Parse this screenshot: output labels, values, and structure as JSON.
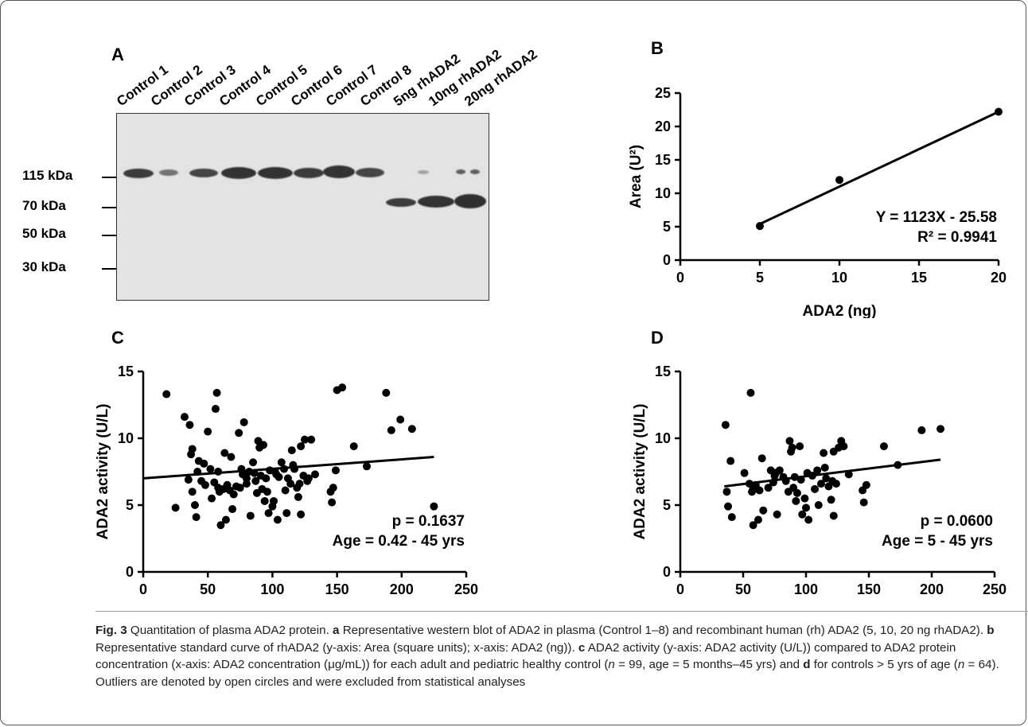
{
  "panels": {
    "a": "A",
    "b": "B",
    "c": "C",
    "d": "D"
  },
  "blot": {
    "lanes": [
      "Control 1",
      "Control 2",
      "Control 3",
      "Control 4",
      "Control 5",
      "Control 6",
      "Control 7",
      "Control 8",
      "5ng rhADA2",
      "10ng rhADA2",
      "20ng rhADA2"
    ],
    "markers": [
      "115 kDa",
      "70 kDa",
      "50 kDa",
      "30 kDa"
    ]
  },
  "chart_data": [
    {
      "panel": "B",
      "type": "scatter",
      "xlabel": "ADA2 (ng)",
      "ylabel": "Area (U²)",
      "xlim": [
        0,
        20
      ],
      "ylim": [
        0,
        25
      ],
      "xticks": [
        0,
        5,
        10,
        15,
        20
      ],
      "yticks": [
        0,
        5,
        10,
        15,
        20,
        25
      ],
      "points": [
        [
          5,
          5.1
        ],
        [
          10,
          12.0
        ],
        [
          20,
          22.2
        ]
      ],
      "fit": {
        "x": [
          5,
          20
        ],
        "y": [
          5.4,
          22.2
        ]
      },
      "annotations": [
        "Y = 1123X - 25.58",
        "R² = 0.9941"
      ]
    },
    {
      "panel": "C",
      "type": "scatter",
      "xlabel": "ADA2 concentration (μg/mL)",
      "ylabel": "ADA2 activity (U/L)",
      "xlim": [
        0,
        250
      ],
      "ylim": [
        0,
        15
      ],
      "xticks": [
        0,
        50,
        100,
        150,
        200,
        250
      ],
      "yticks": [
        0,
        5,
        10,
        15
      ],
      "points": [
        [
          18,
          13.3
        ],
        [
          25,
          4.8
        ],
        [
          32,
          11.6
        ],
        [
          35,
          6.9
        ],
        [
          36,
          11.0
        ],
        [
          37,
          8.8
        ],
        [
          38,
          9.2
        ],
        [
          38,
          6.0
        ],
        [
          40,
          5.0
        ],
        [
          41,
          4.1
        ],
        [
          42,
          7.5
        ],
        [
          43,
          8.3
        ],
        [
          45,
          6.8
        ],
        [
          47,
          8.1
        ],
        [
          48,
          6.5
        ],
        [
          50,
          10.5
        ],
        [
          52,
          7.7
        ],
        [
          53,
          5.5
        ],
        [
          55,
          6.7
        ],
        [
          56,
          12.2
        ],
        [
          57,
          13.4
        ],
        [
          58,
          7.5
        ],
        [
          58,
          6.3
        ],
        [
          59,
          6.0
        ],
        [
          60,
          3.5
        ],
        [
          62,
          6.2
        ],
        [
          63,
          8.9
        ],
        [
          64,
          3.9
        ],
        [
          65,
          6.5
        ],
        [
          67,
          6.1
        ],
        [
          68,
          8.6
        ],
        [
          69,
          4.7
        ],
        [
          70,
          5.8
        ],
        [
          72,
          6.4
        ],
        [
          74,
          10.4
        ],
        [
          75,
          6.3
        ],
        [
          76,
          7.7
        ],
        [
          77,
          7.3
        ],
        [
          78,
          11.2
        ],
        [
          80,
          7.0
        ],
        [
          80,
          6.6
        ],
        [
          82,
          7.5
        ],
        [
          83,
          4.2
        ],
        [
          85,
          8.2
        ],
        [
          86,
          7.4
        ],
        [
          87,
          6.8
        ],
        [
          88,
          5.9
        ],
        [
          89,
          9.8
        ],
        [
          90,
          9.3
        ],
        [
          91,
          7.2
        ],
        [
          92,
          6.2
        ],
        [
          93,
          9.5
        ],
        [
          94,
          5.3
        ],
        [
          95,
          7.0
        ],
        [
          96,
          6.0
        ],
        [
          97,
          4.4
        ],
        [
          98,
          7.6
        ],
        [
          100,
          4.9
        ],
        [
          101,
          5.3
        ],
        [
          102,
          7.5
        ],
        [
          103,
          7.3
        ],
        [
          104,
          3.9
        ],
        [
          105,
          7.1
        ],
        [
          107,
          8.2
        ],
        [
          109,
          7.7
        ],
        [
          110,
          6.1
        ],
        [
          111,
          4.4
        ],
        [
          112,
          7.0
        ],
        [
          114,
          6.6
        ],
        [
          115,
          9.1
        ],
        [
          116,
          8.0
        ],
        [
          117,
          7.7
        ],
        [
          119,
          6.3
        ],
        [
          120,
          5.6
        ],
        [
          121,
          6.6
        ],
        [
          122,
          4.3
        ],
        [
          122,
          9.4
        ],
        [
          124,
          7.2
        ],
        [
          125,
          9.9
        ],
        [
          127,
          6.8
        ],
        [
          128,
          7.0
        ],
        [
          130,
          9.9
        ],
        [
          133,
          7.3
        ],
        [
          145,
          6.0
        ],
        [
          146,
          5.2
        ],
        [
          147,
          6.3
        ],
        [
          149,
          7.6
        ],
        [
          150,
          13.6
        ],
        [
          154,
          13.8
        ],
        [
          163,
          9.4
        ],
        [
          173,
          7.9
        ],
        [
          188,
          13.4
        ],
        [
          192,
          10.6
        ],
        [
          199,
          11.4
        ],
        [
          208,
          10.7
        ],
        [
          225,
          4.9
        ]
      ],
      "fit": {
        "x": [
          0,
          225
        ],
        "y": [
          7.0,
          8.6
        ]
      },
      "annotations": [
        "p = 0.1637",
        "Age = 0.42 - 45 yrs"
      ]
    },
    {
      "panel": "D",
      "type": "scatter",
      "xlabel": "ADA2 concentration (μg/mL)",
      "ylabel": "ADA2 activity (U/L)",
      "xlim": [
        0,
        250
      ],
      "ylim": [
        0,
        15
      ],
      "xticks": [
        0,
        50,
        100,
        150,
        200,
        250
      ],
      "yticks": [
        0,
        5,
        10,
        15
      ],
      "points": [
        [
          36,
          11.0
        ],
        [
          37,
          6.0
        ],
        [
          38,
          4.9
        ],
        [
          40,
          8.3
        ],
        [
          41,
          4.1
        ],
        [
          51,
          7.4
        ],
        [
          55,
          6.6
        ],
        [
          56,
          13.4
        ],
        [
          57,
          6.0
        ],
        [
          58,
          6.2
        ],
        [
          58,
          3.5
        ],
        [
          60,
          6.5
        ],
        [
          62,
          3.9
        ],
        [
          63,
          6.1
        ],
        [
          65,
          8.5
        ],
        [
          66,
          4.6
        ],
        [
          70,
          6.3
        ],
        [
          72,
          7.6
        ],
        [
          74,
          6.7
        ],
        [
          75,
          7.2
        ],
        [
          76,
          7.4
        ],
        [
          77,
          4.3
        ],
        [
          79,
          7.6
        ],
        [
          82,
          7.1
        ],
        [
          84,
          6.8
        ],
        [
          86,
          6.0
        ],
        [
          87,
          9.8
        ],
        [
          88,
          9.0
        ],
        [
          89,
          9.3
        ],
        [
          90,
          6.3
        ],
        [
          91,
          7.1
        ],
        [
          92,
          5.3
        ],
        [
          93,
          5.9
        ],
        [
          95,
          9.4
        ],
        [
          96,
          6.9
        ],
        [
          97,
          4.3
        ],
        [
          99,
          5.5
        ],
        [
          100,
          4.8
        ],
        [
          101,
          7.4
        ],
        [
          102,
          3.9
        ],
        [
          105,
          7.2
        ],
        [
          107,
          6.2
        ],
        [
          109,
          7.6
        ],
        [
          110,
          5.0
        ],
        [
          112,
          6.6
        ],
        [
          114,
          8.9
        ],
        [
          115,
          7.8
        ],
        [
          116,
          7.0
        ],
        [
          118,
          6.4
        ],
        [
          120,
          5.4
        ],
        [
          121,
          6.8
        ],
        [
          122,
          4.2
        ],
        [
          122,
          9.0
        ],
        [
          124,
          6.6
        ],
        [
          126,
          9.3
        ],
        [
          128,
          9.8
        ],
        [
          130,
          9.4
        ],
        [
          134,
          7.3
        ],
        [
          145,
          6.1
        ],
        [
          146,
          5.2
        ],
        [
          148,
          6.5
        ],
        [
          162,
          9.4
        ],
        [
          173,
          8.0
        ],
        [
          192,
          10.6
        ],
        [
          207,
          10.7
        ]
      ],
      "fit": {
        "x": [
          35,
          207
        ],
        "y": [
          6.4,
          8.4
        ]
      },
      "annotations": [
        "p = 0.0600",
        "Age = 5 - 45 yrs"
      ]
    }
  ],
  "caption": {
    "figure_label": "Fig. 3",
    "title": " Quantitation of plasma ADA2 protein. ",
    "a_letter": "a",
    "a_text": " Representative western blot of ADA2 in plasma (Control 1–8) and recombinant human (rh) ADA2 (5, 10, 20 ng rhADA2). ",
    "b_letter": "b",
    "b_text": " Representative standard curve of rhADA2 (y-axis: Area (square units); x-axis: ADA2 (ng)). ",
    "c_letter": "c",
    "c_text": " ADA2 activity (y-axis: ADA2 activity (U/L)) compared to ADA2 protein concentration (x-axis: ADA2 concentration (μg/mL)) for each adult and pediatric healthy control (",
    "n_symbol": "n",
    "c_n": " = 99, age = 5 months–45 yrs) and ",
    "d_letter": "d",
    "d_text": " for controls > 5 yrs of age (",
    "n_symbol2": "n",
    "d_n": " = 64). Outliers are denoted by open circles and were excluded from statistical analyses"
  }
}
